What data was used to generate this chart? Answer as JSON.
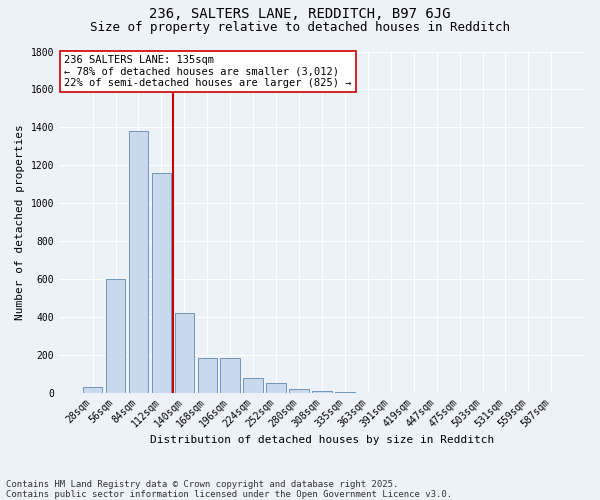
{
  "title_line1": "236, SALTERS LANE, REDDITCH, B97 6JG",
  "title_line2": "Size of property relative to detached houses in Redditch",
  "xlabel": "Distribution of detached houses by size in Redditch",
  "ylabel": "Number of detached properties",
  "categories": [
    "28sqm",
    "56sqm",
    "84sqm",
    "112sqm",
    "140sqm",
    "168sqm",
    "196sqm",
    "224sqm",
    "252sqm",
    "280sqm",
    "308sqm",
    "335sqm",
    "363sqm",
    "391sqm",
    "419sqm",
    "447sqm",
    "475sqm",
    "503sqm",
    "531sqm",
    "559sqm",
    "587sqm"
  ],
  "values": [
    30,
    600,
    1380,
    1160,
    420,
    180,
    180,
    75,
    50,
    20,
    10,
    5,
    0,
    0,
    0,
    0,
    0,
    0,
    0,
    0,
    0
  ],
  "bar_color": "#c9d9ed",
  "bar_edge_color": "#7096b8",
  "vline_x": 3.5,
  "vline_color": "#cc0000",
  "annotation_text": "236 SALTERS LANE: 135sqm\n← 78% of detached houses are smaller (3,012)\n22% of semi-detached houses are larger (825) →",
  "annotation_box_color": "#ffffff",
  "annotation_box_edge_color": "#cc0000",
  "ylim": [
    0,
    1800
  ],
  "yticks": [
    0,
    200,
    400,
    600,
    800,
    1000,
    1200,
    1400,
    1600,
    1800
  ],
  "footnote": "Contains HM Land Registry data © Crown copyright and database right 2025.\nContains public sector information licensed under the Open Government Licence v3.0.",
  "background_color": "#edf1f8",
  "grid_color": "#ffffff",
  "title_fontsize": 10,
  "subtitle_fontsize": 9,
  "axis_label_fontsize": 8,
  "tick_fontsize": 7,
  "annotation_fontsize": 7.5,
  "footnote_fontsize": 6.5
}
